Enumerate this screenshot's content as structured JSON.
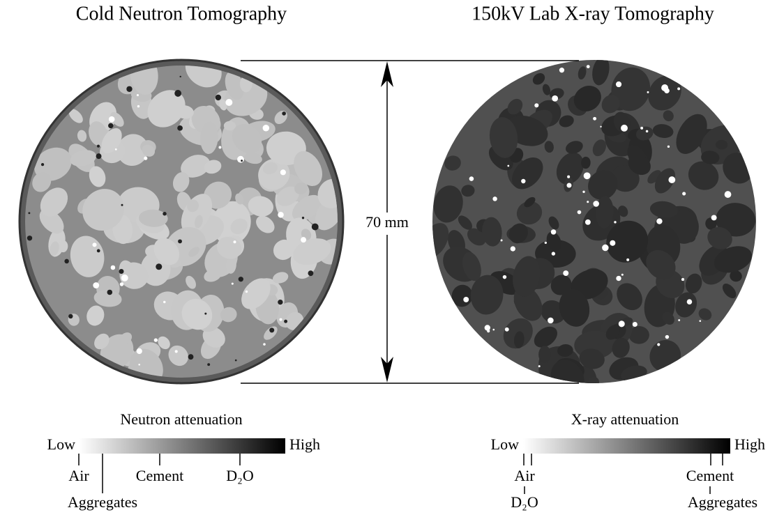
{
  "panels": [
    {
      "title": "Cold Neutron Tomography"
    },
    {
      "title": "150kV Lab X-ray Tomography"
    }
  ],
  "scale_label": "70 mm",
  "colorbars": [
    {
      "title": "Neutron attenuation",
      "low": "Low",
      "high": "High",
      "markers": [
        {
          "label": "Air"
        },
        {
          "label": "Aggregates"
        },
        {
          "label": "Cement"
        },
        {
          "label": "D₂O"
        }
      ]
    },
    {
      "title": "X-ray attenuation",
      "low": "Low",
      "high": "High",
      "markers": [
        {
          "label": "Air"
        },
        {
          "label": "D₂O"
        },
        {
          "label": "Cement"
        },
        {
          "label": "Aggregates"
        }
      ]
    }
  ]
}
